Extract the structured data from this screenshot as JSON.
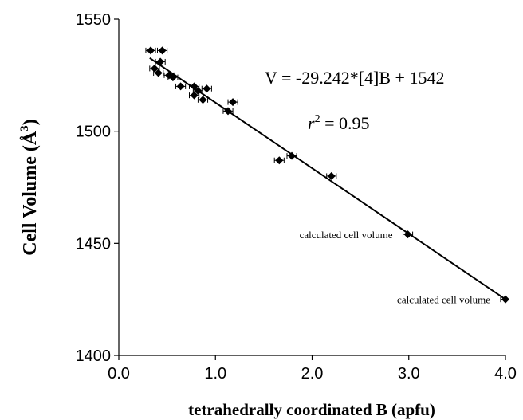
{
  "chart_data": {
    "type": "scatter",
    "xlabel": "tetrahedrally coordinated B (apfu)",
    "ylabel_main": "Cell Volume (Å",
    "ylabel_sup": "3",
    "ylabel_close": ")",
    "xlim": [
      0,
      4.0
    ],
    "ylim": [
      1400,
      1550
    ],
    "x_ticks": [
      "0.0",
      "1.0",
      "2.0",
      "3.0",
      "4.0"
    ],
    "y_ticks": [
      "1400",
      "1450",
      "1500",
      "1550"
    ],
    "x_tick_values": [
      0,
      1,
      2,
      3,
      4
    ],
    "y_tick_values": [
      1400,
      1450,
      1500,
      1550
    ],
    "grid": false,
    "equation": "V = -29.242*[4]B + 1542",
    "r2_var": "r",
    "r2_sup": "2",
    "r2_rest": " = 0.95",
    "fit": {
      "slope": -29.242,
      "intercept": 1542,
      "x_range": [
        0.32,
        4.0
      ]
    },
    "series": [
      {
        "marker": "diamond",
        "error_bars": "horizontal",
        "points": [
          {
            "x": 0.33,
            "y": 1536
          },
          {
            "x": 0.45,
            "y": 1536
          },
          {
            "x": 0.43,
            "y": 1531
          },
          {
            "x": 0.37,
            "y": 1528
          },
          {
            "x": 0.41,
            "y": 1526
          },
          {
            "x": 0.52,
            "y": 1525
          },
          {
            "x": 0.56,
            "y": 1524
          },
          {
            "x": 0.64,
            "y": 1520
          },
          {
            "x": 0.78,
            "y": 1520
          },
          {
            "x": 0.82,
            "y": 1518
          },
          {
            "x": 0.91,
            "y": 1519
          },
          {
            "x": 0.78,
            "y": 1516
          },
          {
            "x": 0.87,
            "y": 1514
          },
          {
            "x": 1.13,
            "y": 1509
          },
          {
            "x": 1.18,
            "y": 1513
          },
          {
            "x": 1.66,
            "y": 1487
          },
          {
            "x": 1.79,
            "y": 1489
          },
          {
            "x": 2.2,
            "y": 1480
          },
          {
            "x": 2.99,
            "y": 1454,
            "label": "calculated cell volume"
          },
          {
            "x": 4.0,
            "y": 1425,
            "label": "calculated cell volume"
          }
        ]
      }
    ]
  }
}
